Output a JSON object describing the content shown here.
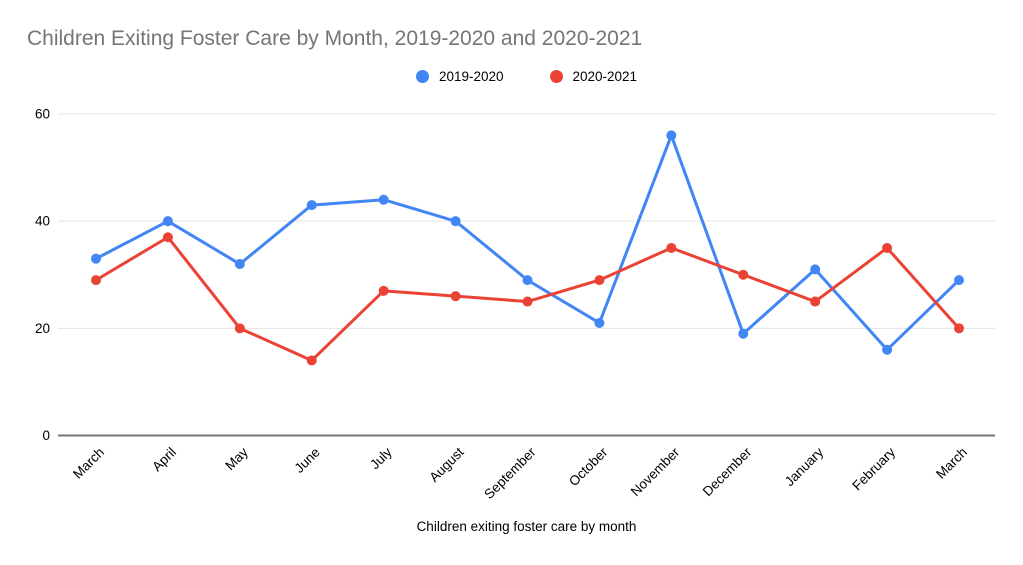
{
  "chart_data": {
    "type": "line",
    "title": "Children Exiting Foster Care by Month, 2019-2020 and 2020-2021",
    "xlabel": "Children exiting foster care by month",
    "ylabel": "",
    "categories": [
      "March",
      "April",
      "May",
      "June",
      "July",
      "August",
      "September",
      "October",
      "November",
      "December",
      "January",
      "February",
      "March"
    ],
    "series": [
      {
        "name": "2019-2020",
        "color": "#4285F4",
        "values": [
          33,
          40,
          32,
          43,
          44,
          40,
          29,
          21,
          56,
          19,
          31,
          16,
          29
        ]
      },
      {
        "name": "2020-2021",
        "color": "#EA4335",
        "values": [
          29,
          37,
          20,
          14,
          27,
          26,
          25,
          29,
          35,
          30,
          25,
          35,
          20
        ]
      }
    ],
    "yticks": [
      0,
      20,
      40,
      60
    ],
    "ylim": [
      0,
      60
    ],
    "grid": true,
    "legend_position": "top",
    "marker": "circle"
  },
  "colors": {
    "title_text": "#757575",
    "axis_text": "#000000",
    "gridline": "#e3e3e3",
    "zero_axis": "#757575",
    "background": "#ffffff"
  }
}
